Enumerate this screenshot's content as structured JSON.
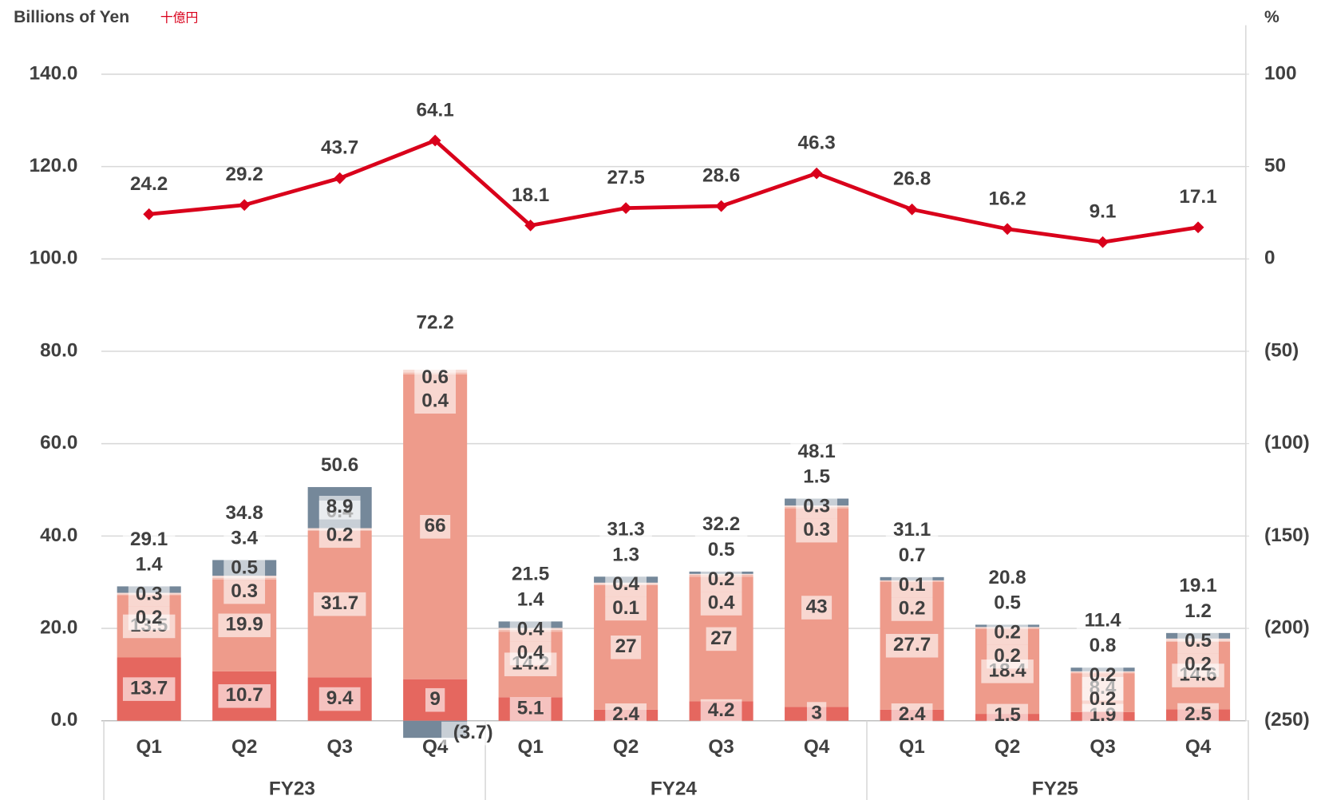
{
  "chart_data": {
    "type": "bar",
    "y_label": "Billions of Yen",
    "y_label_sub": "十億円",
    "y2_label": "%",
    "categories": [
      "Q1",
      "Q2",
      "Q3",
      "Q4",
      "Q1",
      "Q2",
      "Q3",
      "Q4",
      "Q1",
      "Q2",
      "Q3",
      "Q4"
    ],
    "groups": [
      "FY23",
      "FY24",
      "FY25"
    ],
    "ylim": [
      0,
      140
    ],
    "yticks": [
      {
        "value": 0,
        "label": "0.0"
      },
      {
        "value": 20,
        "label": "20.0"
      },
      {
        "value": 40,
        "label": "40.0"
      },
      {
        "value": 60,
        "label": "60.0"
      },
      {
        "value": 80,
        "label": "80.0"
      },
      {
        "value": 100,
        "label": "100.0"
      },
      {
        "value": 120,
        "label": "120.0"
      },
      {
        "value": 140,
        "label": "140.0"
      }
    ],
    "y2lim": [
      -250,
      100
    ],
    "y2ticks": [
      {
        "value": -250,
        "label": "(250)"
      },
      {
        "value": -200,
        "label": "(200)"
      },
      {
        "value": -150,
        "label": "(150)"
      },
      {
        "value": -100,
        "label": "(100)"
      },
      {
        "value": -50,
        "label": "(50)"
      },
      0,
      50,
      100
    ],
    "grid": true,
    "series": [
      {
        "color": "#e5675f",
        "values": [
          13.7,
          10.7,
          9.4,
          9.0,
          5.1,
          2.4,
          4.2,
          3.0,
          2.4,
          1.5,
          1.9,
          2.5
        ]
      },
      {
        "color": "#ee9b8b",
        "values": [
          13.5,
          19.9,
          31.7,
          66.0,
          14.2,
          27.0,
          27.0,
          43.0,
          27.7,
          18.4,
          8.4,
          14.6
        ]
      },
      {
        "color": "#f3bdb1",
        "values": [
          0.2,
          0.3,
          0.2,
          0.4,
          0.4,
          0.1,
          0.4,
          0.3,
          0.2,
          0.2,
          0.2,
          0.2
        ]
      },
      {
        "color": "#f8dcd5",
        "values": [
          0.3,
          0.5,
          0.4,
          0.6,
          0.4,
          0.4,
          0.2,
          0.3,
          0.1,
          0.2,
          0.2,
          0.5
        ]
      },
      {
        "color": "#75889a",
        "values": [
          1.4,
          3.4,
          8.9,
          -3.7,
          1.4,
          1.3,
          0.5,
          1.5,
          0.7,
          0.5,
          0.8,
          1.2
        ],
        "value_labels": [
          "1.4",
          "3.4",
          "8.9",
          "(3.7)",
          "1.4",
          "1.3",
          "0.5",
          "1.5",
          "0.7",
          "0.5",
          "0.8",
          "1.2"
        ]
      },
      {
        "type": "line",
        "axis": "y2",
        "color": "#d9001b",
        "values": [
          24.2,
          29.2,
          43.7,
          64.1,
          18.1,
          27.5,
          28.6,
          46.3,
          26.8,
          16.2,
          9.1,
          17.1
        ]
      }
    ],
    "totals": [
      29.1,
      34.8,
      50.6,
      72.2,
      21.5,
      31.3,
      32.2,
      48.1,
      31.1,
      20.8,
      11.4,
      19.1
    ]
  }
}
